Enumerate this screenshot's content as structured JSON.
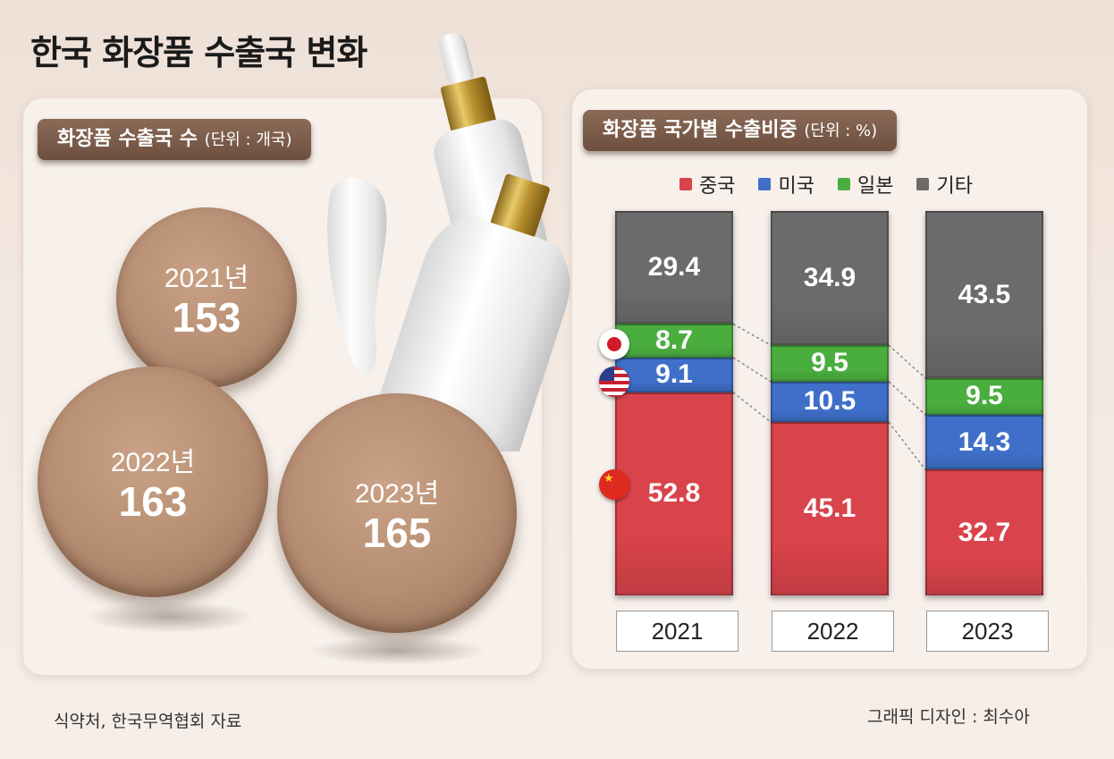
{
  "title": "한국 화장품 수출국 변화",
  "left_panel": {
    "heading": "화장품 수출국 수",
    "unit": "(단위 : 개국)",
    "items": [
      {
        "year": "2021년",
        "value": "153"
      },
      {
        "year": "2022년",
        "value": "163"
      },
      {
        "year": "2023년",
        "value": "165"
      }
    ]
  },
  "right_panel": {
    "heading": "화장품 국가별 수출비중",
    "unit": "(단위 : %)"
  },
  "chart_data": [
    {
      "type": "bar",
      "title": "화장품 수출국 수",
      "unit": "개국",
      "categories": [
        "2021",
        "2022",
        "2023"
      ],
      "values": [
        153,
        163,
        165
      ]
    },
    {
      "type": "bar",
      "stacked": true,
      "title": "화장품 국가별 수출비중",
      "unit": "%",
      "categories": [
        "2021",
        "2022",
        "2023"
      ],
      "series": [
        {
          "name": "중국",
          "color": "#d9434b",
          "values": [
            52.8,
            45.1,
            32.7
          ]
        },
        {
          "name": "미국",
          "color": "#3f6fc8",
          "values": [
            9.1,
            10.5,
            14.3
          ]
        },
        {
          "name": "일본",
          "color": "#4aae3f",
          "values": [
            8.7,
            9.5,
            9.5
          ]
        },
        {
          "name": "기타",
          "color": "#6b6b6b",
          "values": [
            29.4,
            34.9,
            43.5
          ]
        }
      ],
      "legend_position": "top",
      "ylim": [
        0,
        100
      ]
    }
  ],
  "footer": {
    "source": "식약처, 한국무역협회 자료",
    "credit": "그래픽 디자인 : 최수아"
  }
}
